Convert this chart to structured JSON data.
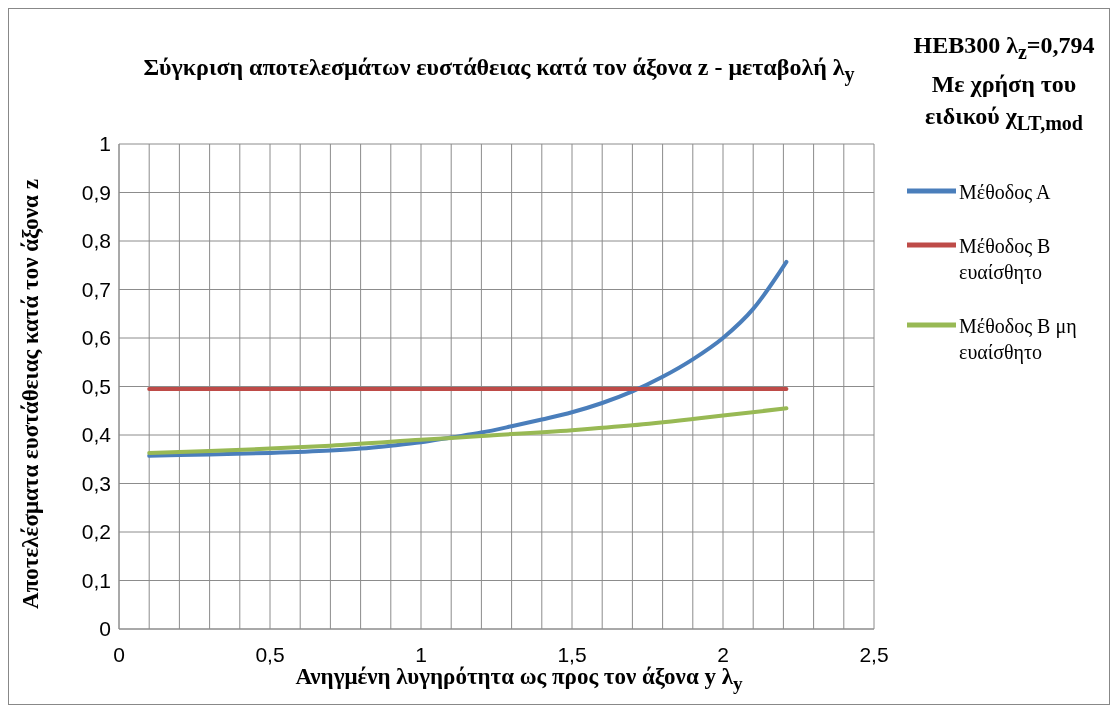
{
  "chart_data": {
    "type": "line",
    "title": "Σύγκριση αποτελεσμάτων ευστάθειας κατά τον άξονα z - μεταβολή λ$_{y}$",
    "xlabel": "Ανηγμένη λυγηρότητα ως προς τον άξονα y λ$_{y}$",
    "ylabel": "Αποτελέσματα ευστάθειας κατά τον άξονα z",
    "legend_title": "HEB300 λ$_{z}$=0,794 Με χρήση του ειδικού χ$_{LT,mod}$",
    "legend": "right",
    "grid": true,
    "marker": "none",
    "line_style": "solid",
    "xlim": [
      0,
      2.5
    ],
    "ylim": [
      0,
      1
    ],
    "xticks": [
      {
        "value": 0,
        "label": "0"
      },
      {
        "value": 0.1,
        "label": null
      },
      {
        "value": 0.2,
        "label": null
      },
      {
        "value": 0.3,
        "label": null
      },
      {
        "value": 0.4,
        "label": null
      },
      {
        "value": 0.5,
        "label": "0,5"
      },
      {
        "value": 0.6,
        "label": null
      },
      {
        "value": 0.7,
        "label": null
      },
      {
        "value": 0.8,
        "label": null
      },
      {
        "value": 0.9,
        "label": null
      },
      {
        "value": 1,
        "label": "1"
      },
      {
        "value": 1.1,
        "label": null
      },
      {
        "value": 1.2,
        "label": null
      },
      {
        "value": 1.3,
        "label": null
      },
      {
        "value": 1.4,
        "label": null
      },
      {
        "value": 1.5,
        "label": "1,5"
      },
      {
        "value": 1.6,
        "label": null
      },
      {
        "value": 1.7,
        "label": null
      },
      {
        "value": 1.8,
        "label": null
      },
      {
        "value": 1.9,
        "label": null
      },
      {
        "value": 2,
        "label": "2"
      },
      {
        "value": 2.1,
        "label": null
      },
      {
        "value": 2.2,
        "label": null
      },
      {
        "value": 2.3,
        "label": null
      },
      {
        "value": 2.4,
        "label": null
      },
      {
        "value": 2.5,
        "label": "2,5"
      }
    ],
    "yticks": [
      {
        "value": 0,
        "label": "0"
      },
      {
        "value": 0.1,
        "label": "0,1"
      },
      {
        "value": 0.2,
        "label": "0,2"
      },
      {
        "value": 0.3,
        "label": "0,3"
      },
      {
        "value": 0.4,
        "label": "0,4"
      },
      {
        "value": 0.5,
        "label": "0,5"
      },
      {
        "value": 0.6,
        "label": "0,6"
      },
      {
        "value": 0.7,
        "label": "0,7"
      },
      {
        "value": 0.8,
        "label": "0,8"
      },
      {
        "value": 0.9,
        "label": "0,9"
      },
      {
        "value": 1,
        "label": "1"
      }
    ],
    "series": [
      {
        "name": "Μέθοδος Α",
        "color": "#4a7ebb",
        "x": [
          0.1,
          0.3,
          0.5,
          0.7,
          0.8,
          0.9,
          1.0,
          1.1,
          1.2,
          1.3,
          1.4,
          1.5,
          1.6,
          1.7,
          1.8,
          1.9,
          2.0,
          2.1,
          2.21
        ],
        "values": [
          0.357,
          0.36,
          0.363,
          0.368,
          0.372,
          0.378,
          0.385,
          0.395,
          0.405,
          0.418,
          0.432,
          0.447,
          0.466,
          0.49,
          0.52,
          0.556,
          0.6,
          0.66,
          0.757
        ]
      },
      {
        "name": "Μέθοδος Β ευαίσθητο",
        "color": "#be4b48",
        "x": [
          0.1,
          2.21
        ],
        "values": [
          0.495,
          0.495
        ]
      },
      {
        "name": "Μέθοδος Β μη ευαίσθητο",
        "color": "#98b954",
        "x": [
          0.1,
          0.3,
          0.5,
          0.7,
          1.0,
          1.2,
          1.5,
          1.7,
          1.9,
          2.0,
          2.21
        ],
        "values": [
          0.363,
          0.367,
          0.372,
          0.378,
          0.39,
          0.398,
          0.41,
          0.42,
          0.433,
          0.44,
          0.455
        ]
      }
    ]
  }
}
